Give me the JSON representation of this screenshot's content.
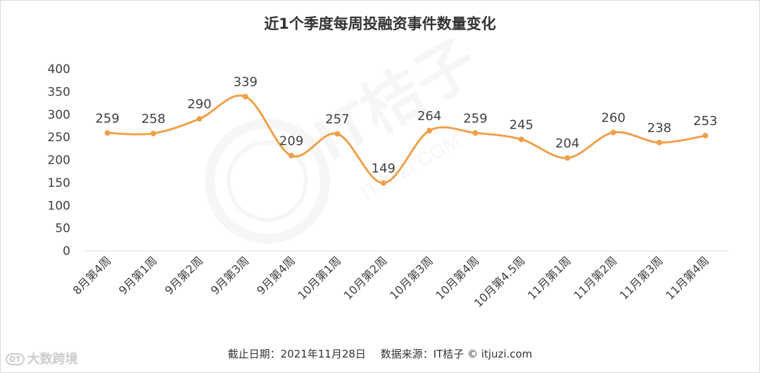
{
  "chart_data": {
    "type": "line",
    "title": "近1个季度每周投融资事件数量变化",
    "categories": [
      "8月第4周",
      "9月第1周",
      "9月第2周",
      "9月第3周",
      "9月第4周",
      "10月第1周",
      "10月第2周",
      "10月第3周",
      "10月第4周",
      "10月第4.5周",
      "11月第1周",
      "11月第2周",
      "11月第3周",
      "11月第4周"
    ],
    "series": [
      {
        "values": [
          259,
          258,
          290,
          339,
          209,
          257,
          149,
          264,
          259,
          245,
          204,
          260,
          238,
          253
        ]
      }
    ],
    "ylim": [
      0,
      400
    ],
    "yticks": [
      "0",
      "50",
      "100",
      "150",
      "200",
      "250",
      "300",
      "350",
      "400"
    ],
    "grid": false,
    "line_color": "#F0A04B",
    "smooth": true
  },
  "footer": {
    "date_text": "截止日期：2021年11月28日",
    "source_text": "数据来源：IT桔子 © itjuzi.com"
  },
  "watermark": {
    "center_text": "IT桔子",
    "center_url": "ITJUZI.COM",
    "corner_logo": "DT",
    "corner_text": "大数跨境"
  }
}
